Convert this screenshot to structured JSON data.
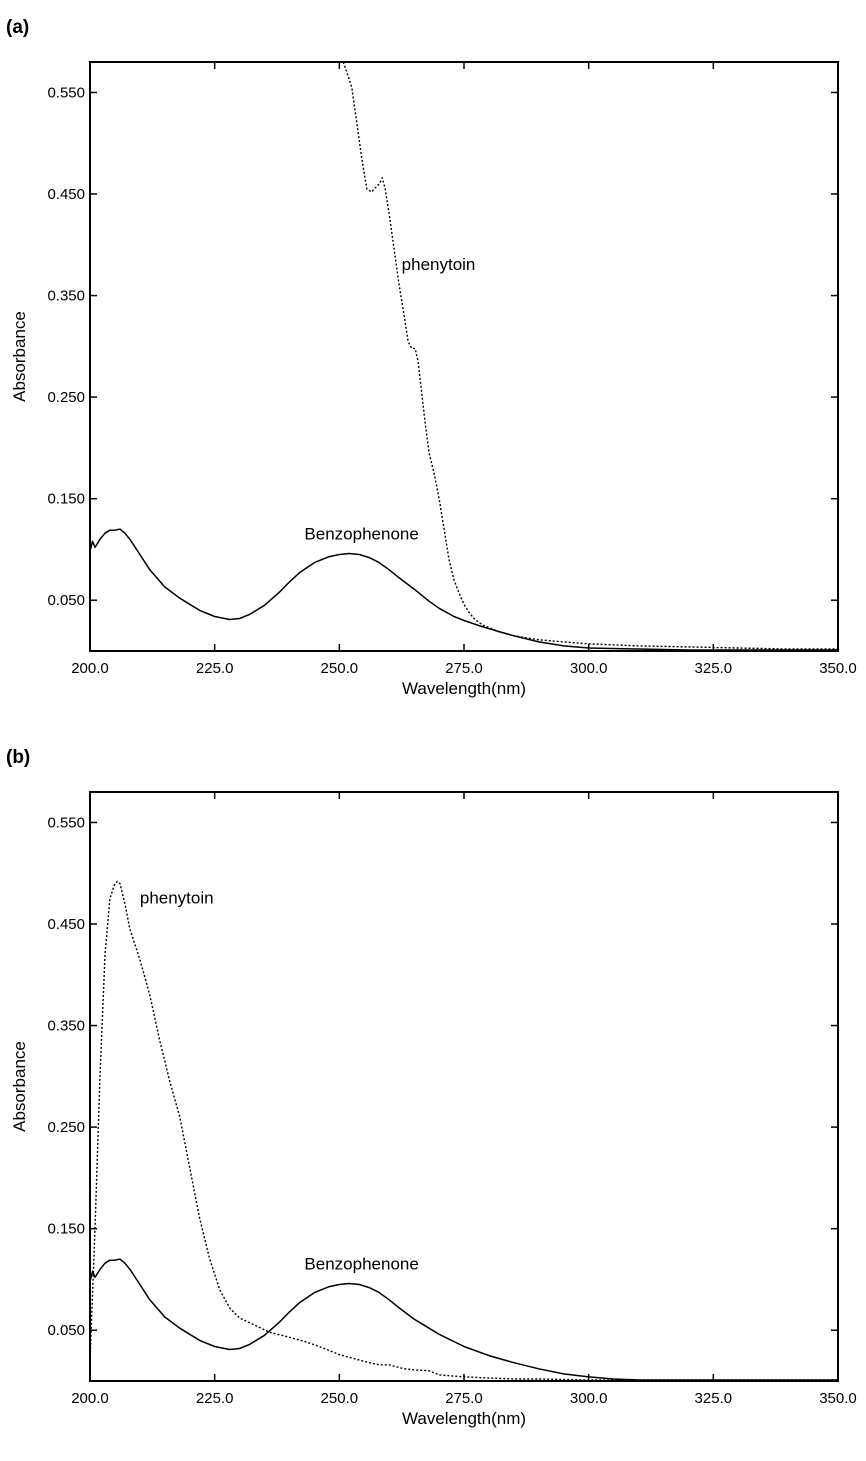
{
  "chart_data": [
    {
      "panel_label": "(a)",
      "type": "line",
      "title": "",
      "xlabel": "Wavelength(nm)",
      "ylabel": "Absorbance",
      "xlim": [
        200,
        350
      ],
      "ylim": [
        0,
        0.58
      ],
      "x_ticks": [
        200,
        225,
        250,
        275,
        300,
        325,
        350
      ],
      "x_tick_labels": [
        "200.0",
        "225.0",
        "250.0",
        "275.0",
        "300.0",
        "325.0",
        "350.0"
      ],
      "y_ticks": [
        0.05,
        0.15,
        0.25,
        0.35,
        0.45,
        0.55
      ],
      "y_tick_labels": [
        "0.050",
        "0.150",
        "0.250",
        "0.350",
        "0.450",
        "0.550"
      ],
      "grid": false,
      "annotations": [
        {
          "text": "phenytoin",
          "x": 262.5,
          "y": 0.375
        },
        {
          "text": "Benzophenone",
          "x": 243,
          "y": 0.11
        }
      ],
      "series": [
        {
          "name": "Benzophenone",
          "style": "solid",
          "x": [
            200,
            200.5,
            201,
            202,
            203,
            204,
            205,
            206,
            207,
            208,
            210,
            212,
            215,
            218,
            220,
            222,
            225,
            228,
            230,
            232,
            235,
            238,
            240,
            242,
            245,
            248,
            250,
            252,
            254,
            256,
            258,
            260,
            262,
            265,
            268,
            270,
            273,
            275,
            278,
            280,
            285,
            290,
            295,
            300,
            310,
            320,
            330,
            340,
            350
          ],
          "y": [
            0.098,
            0.108,
            0.102,
            0.11,
            0.116,
            0.119,
            0.119,
            0.12,
            0.116,
            0.11,
            0.095,
            0.08,
            0.063,
            0.052,
            0.046,
            0.04,
            0.034,
            0.031,
            0.032,
            0.036,
            0.045,
            0.058,
            0.068,
            0.077,
            0.087,
            0.093,
            0.095,
            0.096,
            0.095,
            0.092,
            0.087,
            0.08,
            0.072,
            0.061,
            0.049,
            0.042,
            0.034,
            0.03,
            0.025,
            0.022,
            0.015,
            0.009,
            0.005,
            0.003,
            0.002,
            0.001,
            0.001,
            0.001,
            0.001
          ]
        },
        {
          "name": "phenytoin",
          "style": "dotted",
          "x": [
            250.8,
            251.5,
            252.5,
            253.5,
            254.5,
            255.5,
            256.5,
            257.2,
            258,
            258.6,
            259.2,
            260,
            261,
            262,
            263,
            263.8,
            264.5,
            265.2,
            265.8,
            266.5,
            267.2,
            268,
            269,
            270,
            271,
            272,
            273,
            274,
            275,
            276,
            277,
            278,
            279,
            280,
            282,
            285,
            290,
            295,
            300,
            310,
            320,
            330,
            340,
            350
          ],
          "y": [
            0.58,
            0.57,
            0.555,
            0.52,
            0.485,
            0.455,
            0.452,
            0.456,
            0.46,
            0.466,
            0.455,
            0.43,
            0.395,
            0.36,
            0.33,
            0.305,
            0.298,
            0.298,
            0.285,
            0.255,
            0.225,
            0.195,
            0.175,
            0.15,
            0.12,
            0.09,
            0.07,
            0.057,
            0.046,
            0.038,
            0.032,
            0.028,
            0.025,
            0.023,
            0.019,
            0.015,
            0.011,
            0.009,
            0.007,
            0.005,
            0.004,
            0.003,
            0.002,
            0.002
          ]
        }
      ]
    },
    {
      "panel_label": "(b)",
      "type": "line",
      "title": "",
      "xlabel": "Wavelength(nm)",
      "ylabel": "Absorbance",
      "xlim": [
        200,
        350
      ],
      "ylim": [
        0,
        0.58
      ],
      "x_ticks": [
        200,
        225,
        250,
        275,
        300,
        325,
        350
      ],
      "x_tick_labels": [
        "200.0",
        "225.0",
        "250.0",
        "275.0",
        "300.0",
        "325.0",
        "350.0"
      ],
      "y_ticks": [
        0.05,
        0.15,
        0.25,
        0.35,
        0.45,
        0.55
      ],
      "y_tick_labels": [
        "0.050",
        "0.150",
        "0.250",
        "0.350",
        "0.450",
        "0.550"
      ],
      "grid": false,
      "annotations": [
        {
          "text": "phenytoin",
          "x": 210,
          "y": 0.47
        },
        {
          "text": "Benzophenone",
          "x": 243,
          "y": 0.11
        }
      ],
      "series": [
        {
          "name": "Benzophenone",
          "style": "solid",
          "x": [
            200,
            200.5,
            201,
            202,
            203,
            204,
            205,
            206,
            207,
            208,
            210,
            212,
            215,
            218,
            220,
            222,
            225,
            228,
            230,
            232,
            235,
            238,
            240,
            242,
            245,
            248,
            250,
            252,
            254,
            256,
            258,
            260,
            262,
            265,
            268,
            270,
            275,
            280,
            285,
            290,
            295,
            300,
            305,
            310,
            320,
            330,
            340,
            350
          ],
          "y": [
            0.098,
            0.108,
            0.102,
            0.11,
            0.116,
            0.119,
            0.119,
            0.12,
            0.116,
            0.11,
            0.095,
            0.08,
            0.063,
            0.052,
            0.046,
            0.04,
            0.034,
            0.031,
            0.032,
            0.036,
            0.045,
            0.058,
            0.068,
            0.077,
            0.087,
            0.093,
            0.095,
            0.096,
            0.095,
            0.092,
            0.087,
            0.08,
            0.072,
            0.061,
            0.052,
            0.046,
            0.034,
            0.025,
            0.018,
            0.012,
            0.007,
            0.004,
            0.002,
            0.001,
            0.001,
            0.001,
            0.001,
            0.001
          ]
        },
        {
          "name": "phenytoin",
          "style": "dotted",
          "x": [
            200,
            201,
            202,
            203,
            204,
            205,
            205.5,
            206,
            207,
            208,
            209,
            210,
            212,
            214,
            216,
            218,
            220,
            222,
            224,
            226,
            228,
            230,
            233,
            236,
            240,
            243,
            246,
            250,
            253,
            256,
            258,
            260,
            263,
            265,
            268,
            270,
            275,
            280,
            285,
            290,
            300,
            310,
            320,
            330,
            340,
            350
          ],
          "y": [
            0.02,
            0.15,
            0.3,
            0.42,
            0.475,
            0.49,
            0.492,
            0.49,
            0.47,
            0.445,
            0.43,
            0.415,
            0.38,
            0.335,
            0.295,
            0.26,
            0.21,
            0.16,
            0.12,
            0.09,
            0.072,
            0.062,
            0.055,
            0.048,
            0.043,
            0.039,
            0.034,
            0.026,
            0.022,
            0.018,
            0.016,
            0.016,
            0.012,
            0.011,
            0.01,
            0.006,
            0.004,
            0.003,
            0.002,
            0.002,
            0.001,
            0.001,
            0.001,
            0.001,
            0.001,
            0.001
          ]
        }
      ]
    }
  ]
}
